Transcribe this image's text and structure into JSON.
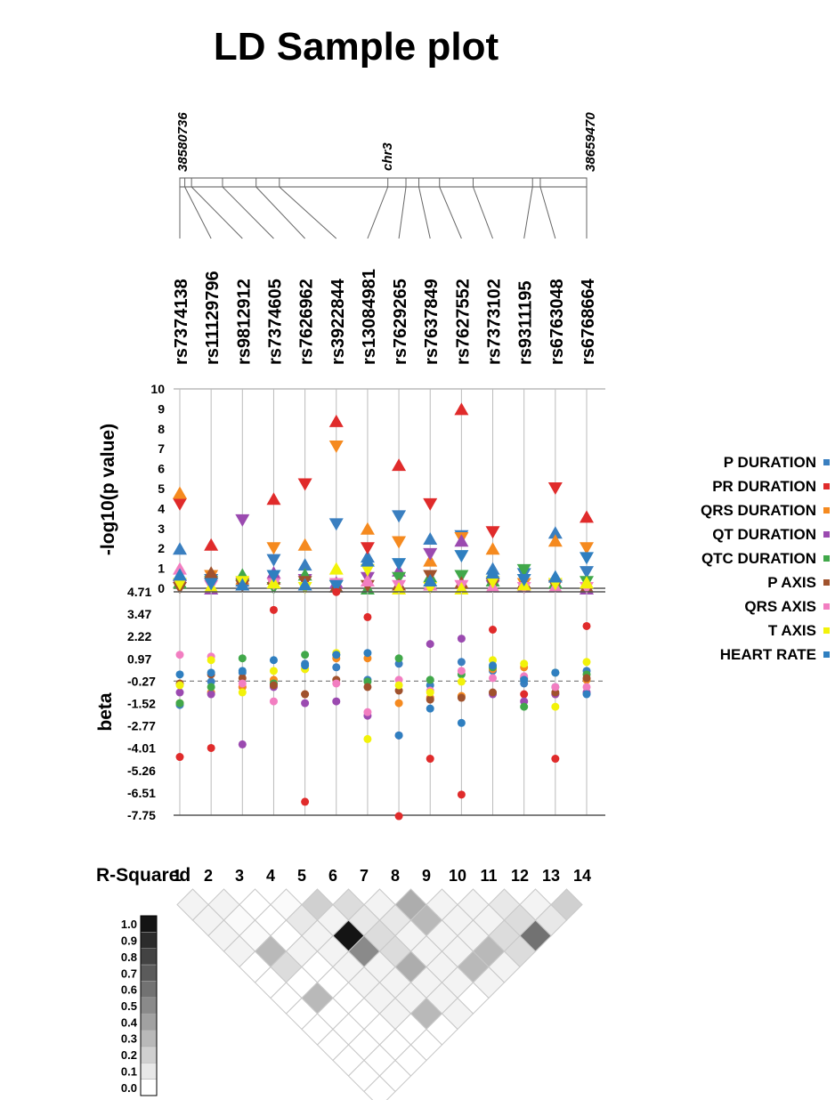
{
  "title": "LD Sample plot",
  "chromosome": {
    "label": "chr3",
    "start": "38580736",
    "end": "38659470",
    "start_pos": 38580736,
    "end_pos": 38659470
  },
  "colors": {
    "p_duration": "#3a7fc0",
    "pr_duration": "#e02b2b",
    "qrs_duration": "#f58a1f",
    "qt_duration": "#9b4ab0",
    "qtc_duration": "#41a84a",
    "p_axis": "#a0522d",
    "qrs_axis": "#f27ec1",
    "t_axis": "#f2f20a",
    "heart_rate": "#2f7fc0"
  },
  "chart_data": [
    {
      "type": "scatter",
      "ylabel": "-log10(p value)",
      "ylim": [
        0,
        10
      ],
      "yticks": [
        "10",
        "9",
        "8",
        "7",
        "6",
        "5",
        "4",
        "3",
        "2",
        "1",
        "0"
      ],
      "categories": [
        "rs7374138",
        "rs11129796",
        "rs9812912",
        "rs7374605",
        "rs7626962",
        "rs3922844",
        "rs13084981",
        "rs7629265",
        "rs7637849",
        "rs7627552",
        "rs7373102",
        "rs9311195",
        "rs6763048",
        "rs6768664"
      ],
      "snp_positions": [
        38580736,
        38581700,
        38583000,
        38589000,
        38595500,
        38600000,
        38621000,
        38624500,
        38627000,
        38631000,
        38637500,
        38649000,
        38650500,
        38659470
      ],
      "series": [
        {
          "name": "P DURATION",
          "color_key": "p_duration",
          "values": [
            2.0,
            0.4,
            0.4,
            1.4,
            1.2,
            3.2,
            1.6,
            3.6,
            2.5,
            2.6,
            1.0,
            0.7,
            2.8,
            0.8
          ]
        },
        {
          "name": "PR DURATION",
          "color_key": "pr_duration",
          "values": [
            4.2,
            2.2,
            0.2,
            4.5,
            5.2,
            8.4,
            2.0,
            6.2,
            4.2,
            9.0,
            2.8,
            0.2,
            5.0,
            3.6
          ]
        },
        {
          "name": "QRS DURATION",
          "color_key": "qrs_duration",
          "values": [
            4.8,
            0.6,
            0.5,
            2.0,
            2.2,
            7.1,
            3.0,
            2.3,
            1.4,
            2.5,
            2.0,
            0.2,
            2.4,
            2.0
          ]
        },
        {
          "name": "QT DURATION",
          "color_key": "qt_duration",
          "values": [
            0.1,
            0.0,
            3.4,
            0.8,
            0.4,
            0.3,
            0.5,
            0.9,
            1.7,
            2.4,
            0.1,
            0.1,
            0.1,
            0.0
          ]
        },
        {
          "name": "QTC DURATION",
          "color_key": "qtc_duration",
          "values": [
            0.3,
            0.3,
            0.7,
            0.0,
            0.7,
            0.1,
            -0.1,
            0.5,
            0.6,
            0.6,
            0.4,
            0.9,
            0.3,
            0.3
          ]
        },
        {
          "name": "P AXIS",
          "color_key": "p_axis",
          "values": [
            -0.1,
            0.8,
            0.1,
            0.5,
            0.3,
            0.1,
            0.1,
            0.2,
            0.6,
            0.3,
            0.2,
            0.3,
            0.1,
            0.1
          ]
        },
        {
          "name": "QRS AXIS",
          "color_key": "qrs_axis",
          "values": [
            1.0,
            0.1,
            0.2,
            0.2,
            0.2,
            0.2,
            0.4,
            0.1,
            0.2,
            0.1,
            0.1,
            0.0,
            0.1,
            0.0
          ]
        },
        {
          "name": "T AXIS",
          "color_key": "t_axis",
          "values": [
            0.2,
            0.1,
            0.3,
            0.3,
            0.0,
            1.0,
            0.9,
            0.0,
            -0.1,
            -0.1,
            0.3,
            0.2,
            0.2,
            0.3
          ]
        },
        {
          "name": "HEART RATE",
          "color_key": "heart_rate",
          "values": [
            0.7,
            0.2,
            0.2,
            0.6,
            0.2,
            0.1,
            1.4,
            1.2,
            0.4,
            1.6,
            0.8,
            0.4,
            0.6,
            1.5
          ]
        }
      ]
    },
    {
      "type": "scatter",
      "ylabel": "beta",
      "ylim": [
        -7.75,
        4.71
      ],
      "yticks": [
        "4.71",
        "3.47",
        "2.22",
        "0.97",
        "-0.27",
        "-1.52",
        "-2.77",
        "-4.01",
        "-5.26",
        "-6.51",
        "-7.75"
      ],
      "reference_line": -0.27,
      "series": [
        {
          "name": "P DURATION",
          "color_key": "p_duration",
          "values": [
            -1.6,
            -0.3,
            0.2,
            -0.4,
            0.7,
            0.5,
            -0.2,
            0.7,
            -0.5,
            0.8,
            0.3,
            -0.4,
            -0.6,
            0.3
          ]
        },
        {
          "name": "PR DURATION",
          "color_key": "pr_duration",
          "values": [
            -4.5,
            -4.0,
            -0.6,
            3.7,
            -7.0,
            4.7,
            3.3,
            -7.8,
            -4.6,
            -6.6,
            2.6,
            -1.0,
            -4.6,
            2.8
          ]
        },
        {
          "name": "QRS DURATION",
          "color_key": "qrs_duration",
          "values": [
            -1.5,
            -0.9,
            -0.6,
            -0.2,
            -1.0,
            1.0,
            1.0,
            -1.5,
            -1.2,
            -1.1,
            0.4,
            0.5,
            -1.0,
            -0.2
          ]
        },
        {
          "name": "QT DURATION",
          "color_key": "qt_duration",
          "values": [
            -0.9,
            -1.0,
            -3.8,
            -0.6,
            -1.5,
            -1.4,
            -2.2,
            -3.3,
            1.8,
            2.1,
            -1.0,
            -1.4,
            -1.0,
            -0.9
          ]
        },
        {
          "name": "QTC DURATION",
          "color_key": "qtc_duration",
          "values": [
            -1.5,
            -0.6,
            1.0,
            -0.4,
            1.2,
            1.2,
            -0.3,
            1.0,
            -0.2,
            0.1,
            0.5,
            -1.7,
            0.2,
            0.1
          ]
        },
        {
          "name": "P AXIS",
          "color_key": "p_axis",
          "values": [
            -0.4,
            0.1,
            -0.1,
            -0.5,
            -1.0,
            -0.2,
            -0.6,
            -0.8,
            -1.3,
            -1.2,
            -0.9,
            -0.1,
            -0.9,
            -0.1
          ]
        },
        {
          "name": "QRS AXIS",
          "color_key": "qrs_axis",
          "values": [
            1.2,
            1.1,
            -0.4,
            -1.4,
            0.4,
            -0.4,
            -2.0,
            -0.2,
            -0.8,
            0.3,
            -0.1,
            0.0,
            -0.6,
            -0.6
          ]
        },
        {
          "name": "T AXIS",
          "color_key": "t_axis",
          "values": [
            -0.5,
            0.9,
            -0.9,
            0.3,
            0.4,
            1.3,
            -3.5,
            -0.5,
            -0.9,
            -0.3,
            0.9,
            0.7,
            -1.7,
            0.8
          ]
        },
        {
          "name": "HEART RATE",
          "color_key": "heart_rate",
          "values": [
            0.1,
            0.2,
            0.3,
            0.9,
            0.6,
            1.2,
            1.3,
            -3.3,
            -1.8,
            -2.6,
            0.6,
            -0.2,
            0.2,
            -1.0
          ]
        }
      ]
    },
    {
      "type": "heatmap",
      "title": "R-Squared",
      "labels": [
        "1",
        "2",
        "3",
        "4",
        "5",
        "6",
        "7",
        "8",
        "9",
        "10",
        "11",
        "12",
        "13",
        "14"
      ],
      "scale_labels": [
        "1.0",
        "0.9",
        "0.8",
        "0.7",
        "0.6",
        "0.5",
        "0.4",
        "0.3",
        "0.2",
        "0.1",
        "0.0"
      ],
      "values": [
        [
          1,
          2,
          0.05
        ],
        [
          2,
          3,
          0.05
        ],
        [
          3,
          4,
          0.0
        ],
        [
          4,
          5,
          0.02
        ],
        [
          5,
          6,
          0.2
        ],
        [
          6,
          7,
          0.15
        ],
        [
          7,
          8,
          0.05
        ],
        [
          8,
          9,
          0.35
        ],
        [
          9,
          10,
          0.05
        ],
        [
          10,
          11,
          0.05
        ],
        [
          11,
          12,
          0.1
        ],
        [
          12,
          13,
          0.05
        ],
        [
          13,
          14,
          0.2
        ],
        [
          1,
          3,
          0.05
        ],
        [
          2,
          4,
          0.02
        ],
        [
          3,
          5,
          0.0
        ],
        [
          4,
          6,
          0.1
        ],
        [
          5,
          7,
          0.05
        ],
        [
          6,
          8,
          0.1
        ],
        [
          7,
          9,
          0.1
        ],
        [
          8,
          10,
          0.3
        ],
        [
          9,
          11,
          0.05
        ],
        [
          10,
          12,
          0.05
        ],
        [
          11,
          13,
          0.15
        ],
        [
          12,
          14,
          0.1
        ],
        [
          1,
          4,
          0.05
        ],
        [
          2,
          5,
          0.02
        ],
        [
          3,
          6,
          0.0
        ],
        [
          4,
          7,
          0.05
        ],
        [
          5,
          8,
          1.0
        ],
        [
          6,
          9,
          0.15
        ],
        [
          7,
          10,
          0.05
        ],
        [
          8,
          11,
          0.05
        ],
        [
          9,
          12,
          0.05
        ],
        [
          10,
          13,
          0.15
        ],
        [
          11,
          14,
          0.6
        ],
        [
          1,
          5,
          0.05
        ],
        [
          2,
          6,
          0.3
        ],
        [
          3,
          7,
          0.05
        ],
        [
          4,
          8,
          0.05
        ],
        [
          5,
          9,
          0.5
        ],
        [
          6,
          10,
          0.15
        ],
        [
          7,
          11,
          0.05
        ],
        [
          8,
          12,
          0.05
        ],
        [
          9,
          13,
          0.3
        ],
        [
          10,
          14,
          0.15
        ],
        [
          1,
          6,
          0.0
        ],
        [
          2,
          7,
          0.15
        ],
        [
          3,
          8,
          0.0
        ],
        [
          4,
          9,
          0.05
        ],
        [
          5,
          10,
          0.05
        ],
        [
          6,
          11,
          0.35
        ],
        [
          7,
          12,
          0.05
        ],
        [
          8,
          13,
          0.3
        ],
        [
          9,
          14,
          0.05
        ],
        [
          1,
          7,
          0.0
        ],
        [
          2,
          8,
          0.0
        ],
        [
          3,
          9,
          0.0
        ],
        [
          4,
          10,
          0.05
        ],
        [
          5,
          11,
          0.05
        ],
        [
          6,
          12,
          0.05
        ],
        [
          7,
          13,
          0.05
        ],
        [
          8,
          14,
          0.05
        ],
        [
          1,
          8,
          0.0
        ],
        [
          2,
          9,
          0.3
        ],
        [
          3,
          10,
          0.0
        ],
        [
          4,
          11,
          0.05
        ],
        [
          5,
          12,
          0.05
        ],
        [
          6,
          13,
          0.05
        ],
        [
          7,
          14,
          0.0
        ],
        [
          1,
          9,
          0.0
        ],
        [
          2,
          10,
          0.0
        ],
        [
          3,
          11,
          0.0
        ],
        [
          4,
          12,
          0.05
        ],
        [
          5,
          13,
          0.3
        ],
        [
          6,
          14,
          0.05
        ],
        [
          1,
          10,
          0.0
        ],
        [
          2,
          11,
          0.0
        ],
        [
          3,
          12,
          0.0
        ],
        [
          4,
          13,
          0.0
        ],
        [
          5,
          14,
          0.0
        ],
        [
          1,
          11,
          0.0
        ],
        [
          2,
          12,
          0.0
        ],
        [
          3,
          13,
          0.0
        ],
        [
          4,
          14,
          0.0
        ],
        [
          1,
          12,
          0.0
        ],
        [
          2,
          13,
          0.0
        ],
        [
          3,
          14,
          0.0
        ],
        [
          1,
          13,
          0.0
        ],
        [
          2,
          14,
          0.0
        ],
        [
          1,
          14,
          0.0
        ]
      ]
    }
  ]
}
